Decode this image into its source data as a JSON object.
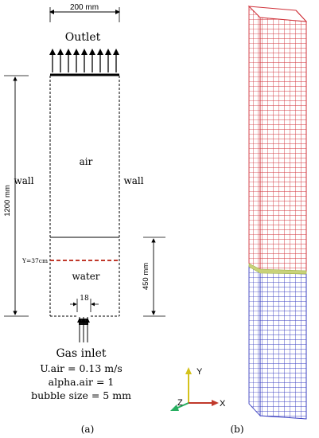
{
  "panel_a": {
    "width_dim": "200 mm",
    "outlet": "Outlet",
    "height_dim": "1200 mm",
    "air": "air",
    "wall_left": "wall",
    "wall_right": "wall",
    "level_marker": "Y=37cm",
    "water": "water",
    "water_dim": "450 mm",
    "inlet_dim": "18",
    "inlet_title": "Gas inlet",
    "u_air": "U.air = 0.13 m/s",
    "alpha_air": "alpha.air = 1",
    "bubble_size": "bubble size = 5 mm",
    "caption": "(a)"
  },
  "panel_b": {
    "axis_y": "Y",
    "axis_x": "X",
    "axis_z": "Z",
    "caption": "(b)",
    "colors": {
      "air_mesh": "#d0333b",
      "water_mesh": "#3a3fc0",
      "interface": "#c9d27a",
      "axis_x": "#c0392b",
      "axis_y": "#d4c21b",
      "axis_z": "#27ae60"
    }
  }
}
